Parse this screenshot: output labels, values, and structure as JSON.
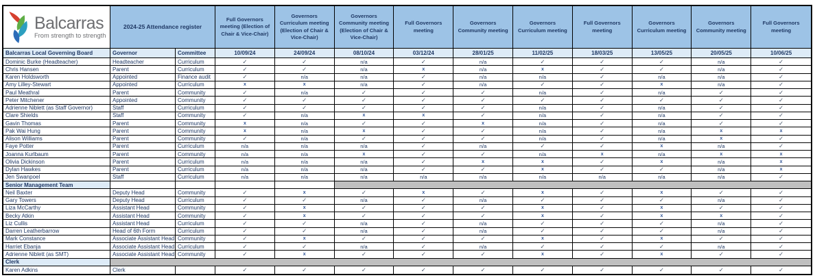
{
  "logo": {
    "name": "Balcarras",
    "tagline": "From strength to strength"
  },
  "header": {
    "title": "2024-25 Attendance register"
  },
  "subheader": {
    "board_label": "Balcarras Local Governing Board",
    "governor_label": "Governor",
    "committee_label": "Committee"
  },
  "meetings": [
    {
      "label": "Full Governors meeting (Election of Chair & Vice-Chair)",
      "date": "10/09/24"
    },
    {
      "label": "Governors Curriculum meeting (Election of Chair & Vice-Chair)",
      "date": "24/09/24"
    },
    {
      "label": "Governors Community meeting (Election of Chair & Vice-Chair)",
      "date": "08/10/24"
    },
    {
      "label": "Full Governors meeting",
      "date": "03/12/24"
    },
    {
      "label": "Governors Community meeting",
      "date": "28/01/25"
    },
    {
      "label": "Governors Curriculum meeting",
      "date": "11/02/25"
    },
    {
      "label": "Full Governors meeting",
      "date": "18/03/25"
    },
    {
      "label": "Governors Curriculum meeting",
      "date": "13/05/25"
    },
    {
      "label": "Governors Community meeting",
      "date": "20/05/25"
    },
    {
      "label": "Full Governors meeting",
      "date": "10/06/25"
    }
  ],
  "symbols": {
    "present": "✓",
    "absent": "x",
    "not_applicable": "n/a"
  },
  "colors": {
    "header_blue": "#9DC3E6",
    "light_blue": "#DDEBF7",
    "navy_text": "#1F3864",
    "section_gray": "#BFBFBF",
    "check": "#44546A"
  },
  "rows": [
    {
      "kind": "person",
      "name": "Dominic Burke (Headteacher)",
      "governor": "Headteacher",
      "committee": "Curriculum",
      "attendance": [
        "y",
        "y",
        "na",
        "y",
        "na",
        "y",
        "y",
        "y",
        "na",
        "y"
      ]
    },
    {
      "kind": "person",
      "name": "Chris Hansen",
      "governor": "Parent",
      "committee": "Curriculum",
      "attendance": [
        "y",
        "y",
        "na",
        "x",
        "na",
        "x",
        "y",
        "y",
        "na",
        "y"
      ]
    },
    {
      "kind": "person",
      "name": "Karen Holdsworth",
      "governor": "Appointed",
      "committee": "Finance audit",
      "attendance": [
        "y",
        "na",
        "na",
        "y",
        "na",
        "na",
        "y",
        "na",
        "na",
        "y"
      ]
    },
    {
      "kind": "person",
      "name": "Amy Lilley-Stewart",
      "governor": "Appointed",
      "committee": "Curriculum",
      "attendance": [
        "x",
        "x",
        "na",
        "y",
        "na",
        "y",
        "y",
        "x",
        "na",
        "y"
      ]
    },
    {
      "kind": "person",
      "name": "Paul Meathral",
      "governor": "Parent",
      "committee": "Community",
      "attendance": [
        "y",
        "na",
        "y",
        "y",
        "y",
        "na",
        "y",
        "na",
        "y",
        "y"
      ]
    },
    {
      "kind": "person",
      "name": "Peter Mitchener",
      "governor": "Appointed",
      "committee": "Community",
      "attendance": [
        "y",
        "y",
        "y",
        "y",
        "y",
        "y",
        "y",
        "y",
        "y",
        "y"
      ]
    },
    {
      "kind": "person",
      "name": "Adrienne Niblett (as Staff Governor)",
      "governor": "Staff",
      "committee": "Curriculum",
      "attendance": [
        "y",
        "y",
        "y",
        "y",
        "y",
        "na",
        "y",
        "na",
        "y",
        "y"
      ]
    },
    {
      "kind": "person",
      "name": "Clare Shields",
      "governor": "Staff",
      "committee": "Community",
      "attendance": [
        "y",
        "na",
        "x",
        "x",
        "y",
        "na",
        "y",
        "na",
        "y",
        "y"
      ]
    },
    {
      "kind": "person",
      "name": "Gavin Thomas",
      "governor": "Parent",
      "committee": "Community",
      "attendance": [
        "x",
        "na",
        "y",
        "y",
        "x",
        "na",
        "y",
        "na",
        "y",
        "y"
      ]
    },
    {
      "kind": "person",
      "name": "Pak Wai Hung",
      "governor": "Parent",
      "committee": "Community",
      "attendance": [
        "x",
        "na",
        "x",
        "y",
        "y",
        "na",
        "y",
        "na",
        "x",
        "x"
      ]
    },
    {
      "kind": "person",
      "name": "Alison Williams",
      "governor": "Parent",
      "committee": "Community",
      "attendance": [
        "y",
        "na",
        "y",
        "y",
        "y",
        "na",
        "y",
        "na",
        "x",
        "y"
      ]
    },
    {
      "kind": "person",
      "name": "Faye Potter",
      "governor": "Parent",
      "committee": "Curriculum",
      "attendance": [
        "na",
        "na",
        "na",
        "y",
        "na",
        "y",
        "y",
        "x",
        "na",
        "y"
      ]
    },
    {
      "kind": "person",
      "name": "Joanna Kurlbaum",
      "governor": "Parent",
      "committee": "Community",
      "attendance": [
        "na",
        "na",
        "x",
        "y",
        "y",
        "na",
        "x",
        "na",
        "x",
        "x"
      ]
    },
    {
      "kind": "person",
      "name": "Olivia Dickinson",
      "governor": "Parent",
      "committee": "Curriculum",
      "attendance": [
        "na",
        "na",
        "na",
        "y",
        "x",
        "x",
        "y",
        "x",
        "na",
        "x"
      ]
    },
    {
      "kind": "person",
      "name": "Dylan Hawkes",
      "governor": "Parent",
      "committee": "Curriculum",
      "attendance": [
        "na",
        "na",
        "na",
        "y",
        "y",
        "x",
        "y",
        "y",
        "na",
        "x"
      ]
    },
    {
      "kind": "person",
      "name": "Jen Swanpoel",
      "governor": "Staff",
      "committee": "Curriculum",
      "attendance": [
        "na",
        "na",
        "na",
        "na",
        "na",
        "na",
        "na",
        "na",
        "na",
        "y"
      ]
    },
    {
      "kind": "section",
      "label": "Senior Management Team",
      "gray_start_col": 6
    },
    {
      "kind": "person",
      "name": "Neil Baxter",
      "governor": "Deputy Head",
      "committee": "Community",
      "attendance": [
        "y",
        "x",
        "y",
        "x",
        "y",
        "x",
        "y",
        "x",
        "y",
        "y"
      ]
    },
    {
      "kind": "person",
      "name": "Gary Towers",
      "governor": "Deputy Head",
      "committee": "Curriculum",
      "attendance": [
        "y",
        "y",
        "na",
        "y",
        "na",
        "y",
        "y",
        "y",
        "na",
        "y"
      ]
    },
    {
      "kind": "person",
      "name": "Liza McCarthy",
      "governor": "Assistant Head",
      "committee": "Community",
      "attendance": [
        "y",
        "x",
        "y",
        "y",
        "y",
        "x",
        "y",
        "x",
        "y",
        "y"
      ]
    },
    {
      "kind": "person",
      "name": "Becky Atkin",
      "governor": "Assistant Head",
      "committee": "Community",
      "attendance": [
        "y",
        "x",
        "y",
        "y",
        "y",
        "x",
        "y",
        "x",
        "x",
        "y"
      ]
    },
    {
      "kind": "person",
      "name": "Liz Cullis",
      "governor": "Assistant Head",
      "committee": "Curriculum",
      "attendance": [
        "y",
        "y",
        "na",
        "y",
        "na",
        "y",
        "y",
        "y",
        "na",
        "y"
      ]
    },
    {
      "kind": "person",
      "name": "Darren Leatherbarrow",
      "governor": "Head of 6th Form",
      "committee": "Curriculum",
      "attendance": [
        "y",
        "y",
        "na",
        "y",
        "na",
        "y",
        "y",
        "y",
        "na",
        "y"
      ]
    },
    {
      "kind": "person",
      "name": "Mark Constance",
      "governor": "Associate Assistant Head",
      "committee": "Community",
      "attendance": [
        "y",
        "x",
        "y",
        "y",
        "y",
        "x",
        "y",
        "x",
        "y",
        "y"
      ]
    },
    {
      "kind": "person",
      "name": "Harriet Ebanja",
      "governor": "Associate Assistant Head",
      "committee": "Curriculum",
      "attendance": [
        "y",
        "y",
        "na",
        "y",
        "na",
        "y",
        "y",
        "y",
        "na",
        "y"
      ]
    },
    {
      "kind": "person",
      "name": "Adrienne Niblett (as SMT)",
      "governor": "Associate Assistant Head",
      "committee": "Community",
      "attendance": [
        "y",
        "x",
        "y",
        "y",
        "y",
        "x",
        "y",
        "x",
        "y",
        "y"
      ]
    },
    {
      "kind": "section",
      "label": "Clerk",
      "gray_start_col": 2
    },
    {
      "kind": "person",
      "name": "Karen Adkins",
      "governor": "Clerk",
      "committee": "",
      "attendance": [
        "y",
        "y",
        "y",
        "y",
        "y",
        "y",
        "y",
        "y",
        "y",
        "y"
      ]
    }
  ]
}
